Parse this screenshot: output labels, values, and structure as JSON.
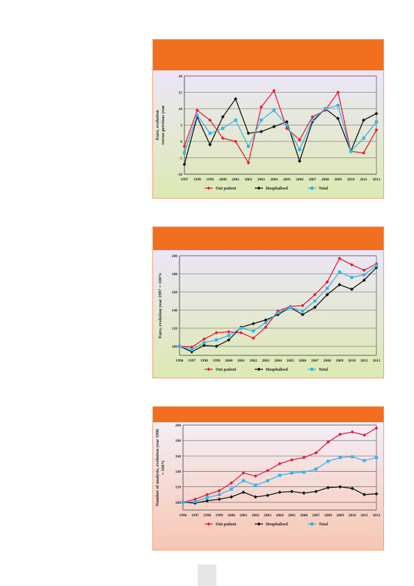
{
  "colors": {
    "header": "#f26f1f",
    "out_patient": "#e8193c",
    "hospitalised": "#111111",
    "total": "#38b3e6"
  },
  "chart_data": [
    {
      "type": "line",
      "ylabel": "Euro, evolution versus previous year",
      "ylim": [
        -10,
        20
      ],
      "yticks": [
        -10,
        -5,
        0,
        5,
        10,
        15,
        20
      ],
      "categories": [
        "1997",
        "1998",
        "1999",
        "2000",
        "2001",
        "2002",
        "2003",
        "2004",
        "2005",
        "2006",
        "2007",
        "2008",
        "2009",
        "2010",
        "2011",
        "2012"
      ],
      "legend_position": "bottom",
      "series": [
        {
          "name": "Out patient",
          "key": "out_patient",
          "values": [
            -1.5,
            9.5,
            6.5,
            1,
            0,
            -6.5,
            10.5,
            15.5,
            4,
            0.5,
            7.5,
            9.5,
            15,
            -3,
            -3.5,
            3.5
          ]
        },
        {
          "name": "Hospitalised",
          "key": "hospitalised",
          "values": [
            -7,
            7.5,
            -1,
            7.5,
            13,
            2.5,
            3,
            4.5,
            6,
            -6,
            6,
            10,
            7,
            -3,
            6.5,
            8.5
          ]
        },
        {
          "name": "Total",
          "key": "total",
          "values": [
            -3.5,
            8,
            2.5,
            4,
            6.5,
            -1.5,
            6.5,
            9.5,
            5,
            -2.5,
            6.5,
            10,
            11,
            -3,
            1,
            6
          ]
        }
      ],
      "legend": [
        "Out patient",
        "Hospitalised",
        "Total"
      ]
    },
    {
      "type": "line",
      "ylabel": "Euro, evolution year 1997 = 100%",
      "ylim": [
        90,
        200
      ],
      "yticks": [
        100,
        120,
        140,
        160,
        180,
        200
      ],
      "categories": [
        "1996",
        "1997",
        "1998",
        "1999",
        "2000",
        "2001",
        "2002",
        "2003",
        "2004",
        "2005",
        "2006",
        "2007",
        "2008",
        "2009",
        "2010",
        "2011",
        "2012"
      ],
      "legend_position": "bottom",
      "series": [
        {
          "name": "Out patient",
          "key": "out_patient",
          "values": [
            100,
            99,
            108,
            115,
            116,
            115,
            109,
            121,
            139,
            144,
            145,
            157,
            171,
            197,
            190,
            184,
            191
          ]
        },
        {
          "name": "Hospitalised",
          "key": "hospitalised",
          "values": [
            100,
            94,
            101,
            100,
            107,
            121,
            125,
            129,
            135,
            143,
            135,
            143,
            157,
            168,
            163,
            173,
            187
          ]
        },
        {
          "name": "Total",
          "key": "total",
          "values": [
            100,
            96,
            104,
            107,
            112,
            120,
            117,
            126,
            137,
            143,
            139,
            150,
            164,
            182,
            176,
            179,
            189
          ]
        }
      ],
      "legend": [
        "Out patient",
        "Hospitalised",
        "Total"
      ]
    },
    {
      "type": "line",
      "ylabel": "Number of analysis, evolution year 1996 = 100%",
      "ylim": [
        90,
        200
      ],
      "yticks": [
        100,
        120,
        140,
        160,
        180,
        200
      ],
      "categories": [
        "1996",
        "1997",
        "1998",
        "1999",
        "2000",
        "2001",
        "2002",
        "2003",
        "2004",
        "2005",
        "2006",
        "2007",
        "2008",
        "2009",
        "2010",
        "2011",
        "2012"
      ],
      "legend_position": "bottom",
      "series": [
        {
          "name": "Out patient",
          "key": "out_patient",
          "values": [
            100,
            104,
            110,
            115,
            125,
            138,
            134,
            141,
            150,
            155,
            158,
            164,
            178,
            188,
            191,
            187,
            196
          ]
        },
        {
          "name": "Hospitalised",
          "key": "hospitalised",
          "values": [
            100,
            99,
            102,
            104,
            107,
            113,
            107,
            109,
            113,
            114,
            112,
            114,
            119,
            120,
            118,
            110,
            111
          ]
        },
        {
          "name": "Total",
          "key": "total",
          "values": [
            100,
            101,
            106,
            110,
            117,
            128,
            122,
            128,
            135,
            138,
            139,
            143,
            153,
            158,
            159,
            154,
            158
          ]
        }
      ],
      "legend": [
        "Out patient",
        "Hospitalised",
        "Total"
      ]
    }
  ]
}
